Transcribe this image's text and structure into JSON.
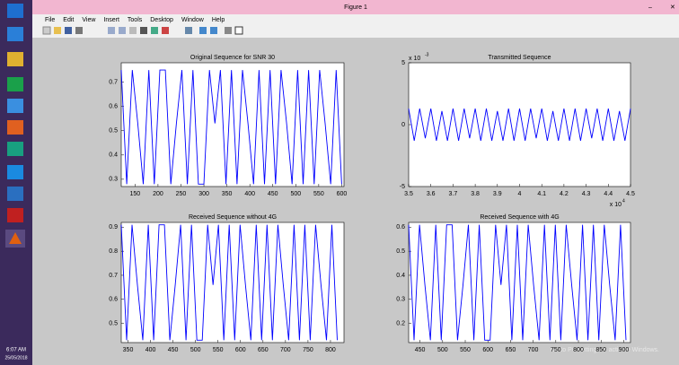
{
  "window": {
    "title": "Figure 1",
    "menu": [
      "File",
      "Edit",
      "View",
      "Insert",
      "Tools",
      "Desktop",
      "Window",
      "Help"
    ]
  },
  "taskbar": {
    "time": "6:07 AM",
    "date": "25/05/2018"
  },
  "watermark": "Go to PC settings to activate Windows.",
  "chart_data": [
    {
      "type": "line",
      "title": "Original Sequence for SNR 30",
      "color": "#0000ff",
      "x": [
        120,
        132,
        144,
        156,
        168,
        180,
        192,
        204,
        216,
        228,
        240,
        252,
        264,
        276,
        288,
        300,
        312,
        324,
        336,
        348,
        360,
        372,
        384,
        396,
        408,
        420,
        432,
        444,
        456,
        468,
        480,
        492,
        504,
        516,
        528,
        540,
        552,
        564,
        576,
        588,
        600
      ],
      "values": [
        0.75,
        0.28,
        0.75,
        0.53,
        0.28,
        0.75,
        0.28,
        0.75,
        0.75,
        0.28,
        0.53,
        0.75,
        0.28,
        0.75,
        0.28,
        0.28,
        0.75,
        0.53,
        0.75,
        0.28,
        0.75,
        0.28,
        0.75,
        0.53,
        0.28,
        0.75,
        0.28,
        0.75,
        0.28,
        0.75,
        0.53,
        0.28,
        0.75,
        0.28,
        0.75,
        0.28,
        0.75,
        0.53,
        0.28,
        0.75,
        0.28
      ],
      "xlim": [
        120,
        605
      ],
      "ylim": [
        0.27,
        0.78
      ],
      "xticks": [
        150,
        200,
        250,
        300,
        350,
        400,
        450,
        500,
        550,
        600
      ],
      "yticks": [
        0.3,
        0.4,
        0.5,
        0.6,
        0.7
      ]
    },
    {
      "type": "line",
      "title": "Transmitted Sequence",
      "color": "#0000ff",
      "x": [
        3.5,
        3.525,
        3.55,
        3.575,
        3.6,
        3.625,
        3.65,
        3.675,
        3.7,
        3.725,
        3.75,
        3.775,
        3.8,
        3.825,
        3.85,
        3.875,
        3.9,
        3.925,
        3.95,
        3.975,
        4,
        4.025,
        4.05,
        4.075,
        4.1,
        4.125,
        4.15,
        4.175,
        4.2,
        4.225,
        4.25,
        4.275,
        4.3,
        4.325,
        4.35,
        4.375,
        4.4,
        4.425,
        4.45,
        4.475,
        4.5
      ],
      "values": [
        1.3,
        -1.3,
        1.3,
        -1.1,
        1.3,
        -1.3,
        1.1,
        -1.3,
        1.3,
        -1.3,
        1.3,
        -1.1,
        1.3,
        -1.3,
        1.3,
        -1.3,
        1.1,
        -1.3,
        1.3,
        -1.3,
        1.3,
        -1.3,
        1.3,
        -1.1,
        1.3,
        -1.3,
        1.1,
        -1.3,
        1.3,
        -1.3,
        1.3,
        -1.3,
        1.3,
        -1.1,
        1.3,
        -1.3,
        1.3,
        -1.3,
        1.1,
        -1.3,
        1.3
      ],
      "xlim": [
        3.5,
        4.5
      ],
      "ylim": [
        -5,
        5
      ],
      "xticks": [
        3.5,
        3.6,
        3.7,
        3.8,
        3.9,
        4,
        4.1,
        4.2,
        4.3,
        4.4,
        4.5
      ],
      "yticks": [
        -5,
        0,
        5
      ],
      "x_multiplier": {
        "base": "x 10",
        "exponent": "4"
      },
      "y_multiplier": {
        "base": "x 10",
        "exponent": "-3"
      }
    },
    {
      "type": "line",
      "title": "Received Sequence without 4G",
      "color": "#0000ff",
      "x": [
        335,
        347,
        359,
        371,
        383,
        395,
        407,
        419,
        431,
        443,
        455,
        467,
        479,
        491,
        503,
        515,
        527,
        539,
        551,
        563,
        575,
        587,
        599,
        611,
        623,
        635,
        647,
        659,
        671,
        683,
        695,
        707,
        719,
        731,
        743,
        755,
        767,
        779,
        791,
        803,
        815
      ],
      "values": [
        0.91,
        0.43,
        0.91,
        0.66,
        0.43,
        0.91,
        0.43,
        0.91,
        0.91,
        0.43,
        0.66,
        0.91,
        0.43,
        0.91,
        0.43,
        0.43,
        0.91,
        0.66,
        0.91,
        0.43,
        0.91,
        0.43,
        0.91,
        0.66,
        0.43,
        0.91,
        0.43,
        0.91,
        0.43,
        0.91,
        0.66,
        0.43,
        0.91,
        0.43,
        0.91,
        0.43,
        0.91,
        0.66,
        0.43,
        0.91,
        0.43
      ],
      "xlim": [
        335,
        830
      ],
      "ylim": [
        0.42,
        0.92
      ],
      "xticks": [
        350,
        400,
        450,
        500,
        550,
        600,
        650,
        700,
        750,
        800
      ],
      "yticks": [
        0.5,
        0.6,
        0.7,
        0.8,
        0.9
      ]
    },
    {
      "type": "line",
      "title": "Received Sequence with 4G",
      "color": "#0000ff",
      "x": [
        425,
        437,
        449,
        461,
        473,
        485,
        497,
        509,
        521,
        533,
        545,
        557,
        569,
        581,
        593,
        605,
        617,
        629,
        641,
        653,
        665,
        677,
        689,
        701,
        713,
        725,
        737,
        749,
        761,
        773,
        785,
        797,
        809,
        821,
        833,
        845,
        857,
        869,
        881,
        893,
        905
      ],
      "values": [
        0.61,
        0.13,
        0.61,
        0.36,
        0.13,
        0.61,
        0.13,
        0.61,
        0.61,
        0.13,
        0.36,
        0.61,
        0.13,
        0.61,
        0.13,
        0.13,
        0.61,
        0.36,
        0.61,
        0.13,
        0.61,
        0.13,
        0.61,
        0.36,
        0.13,
        0.61,
        0.13,
        0.61,
        0.13,
        0.61,
        0.36,
        0.13,
        0.61,
        0.13,
        0.61,
        0.13,
        0.61,
        0.36,
        0.13,
        0.61,
        0.13
      ],
      "xlim": [
        425,
        915
      ],
      "ylim": [
        0.12,
        0.62
      ],
      "xticks": [
        450,
        500,
        550,
        600,
        650,
        700,
        750,
        800,
        850,
        900
      ],
      "yticks": [
        0.2,
        0.3,
        0.4,
        0.5,
        0.6
      ]
    }
  ]
}
